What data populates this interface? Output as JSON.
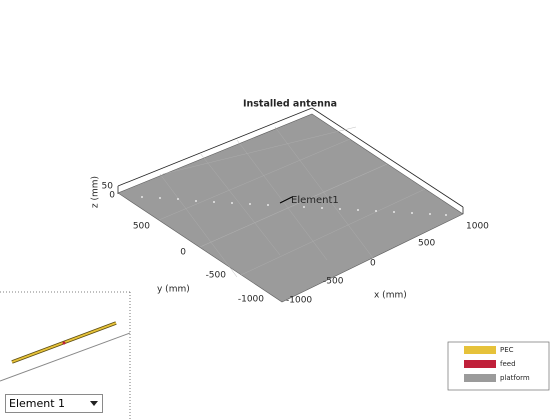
{
  "title": "Installed antenna",
  "annotation": "Element1",
  "axes": {
    "x_label": "x (mm)",
    "y_label": "y (mm)",
    "z_label": "z (mm)",
    "x_ticks": [
      "-1000",
      "-500",
      "0",
      "500",
      "1000"
    ],
    "y_ticks": [
      "500",
      "0",
      "-500",
      "-1000"
    ],
    "z_ticks": [
      "50",
      "0"
    ]
  },
  "legend": [
    "PEC",
    "feed",
    "platform"
  ],
  "dropdown": "Element 1"
}
